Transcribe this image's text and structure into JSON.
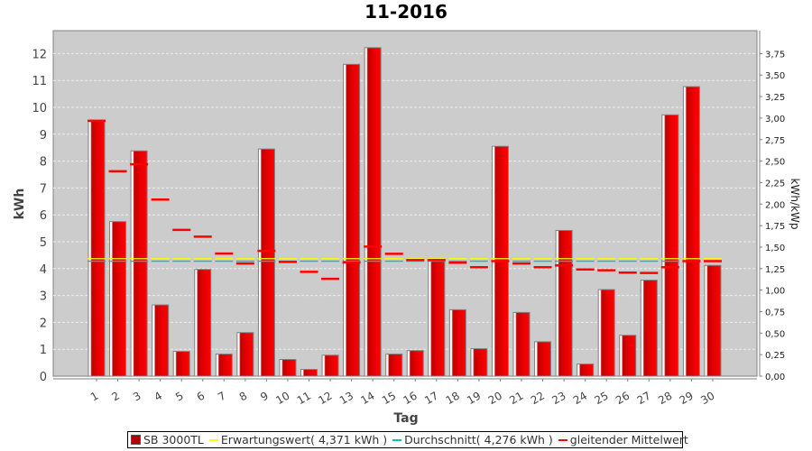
{
  "chart_data": {
    "type": "bar",
    "title": "11-2016",
    "xlabel": "Tag",
    "ylabel": "kWh",
    "ylabel_right": "kWh/kWp",
    "ylim": [
      0,
      12.8
    ],
    "ylim_right": [
      0,
      4.0
    ],
    "yticks": [
      "0",
      "1",
      "2",
      "3",
      "4",
      "5",
      "6",
      "7",
      "8",
      "9",
      "10",
      "11",
      "12"
    ],
    "yticks_right": [
      "0,00",
      "0,25",
      "0,50",
      "0,75",
      "1,00",
      "1,25",
      "1,50",
      "1,75",
      "2,00",
      "2,25",
      "2,50",
      "2,75",
      "3,00",
      "3,25",
      "3,50",
      "3,75"
    ],
    "grid": true,
    "legend_position": "bottom",
    "categories": [
      "1",
      "2",
      "3",
      "4",
      "5",
      "6",
      "7",
      "8",
      "9",
      "10",
      "11",
      "12",
      "13",
      "14",
      "15",
      "16",
      "17",
      "18",
      "19",
      "20",
      "21",
      "22",
      "23",
      "24",
      "25",
      "26",
      "27",
      "28",
      "29",
      "30"
    ],
    "series": [
      {
        "name": "SB 3000TL",
        "type": "bar",
        "color": "#dd0000",
        "values": [
          9.5,
          5.75,
          8.38,
          2.65,
          0.92,
          3.97,
          0.82,
          1.62,
          8.45,
          0.62,
          0.25,
          0.78,
          11.6,
          12.22,
          0.82,
          0.95,
          4.35,
          2.47,
          1.02,
          8.55,
          2.37,
          1.28,
          5.42,
          0.45,
          3.22,
          1.52,
          3.57,
          9.72,
          10.77,
          4.12
        ]
      },
      {
        "name": "Erwartungswert( 4,371 kWh )",
        "type": "line",
        "color": "#ffff00",
        "value": 4.371
      },
      {
        "name": "Durchschnitt( 4,276 kWh )",
        "type": "line",
        "color": "#00c0c0",
        "value": 4.276
      },
      {
        "name": "gleitender Mittelwert",
        "type": "step",
        "color": "#ff0000",
        "values": [
          9.5,
          7.62,
          7.88,
          6.57,
          5.44,
          5.19,
          4.56,
          4.19,
          4.66,
          4.25,
          3.88,
          3.62,
          4.23,
          4.82,
          4.55,
          4.32,
          4.32,
          4.22,
          4.05,
          4.28,
          4.19,
          4.05,
          4.12,
          3.97,
          3.94,
          3.85,
          3.84,
          4.05,
          4.28,
          4.28
        ]
      }
    ]
  }
}
